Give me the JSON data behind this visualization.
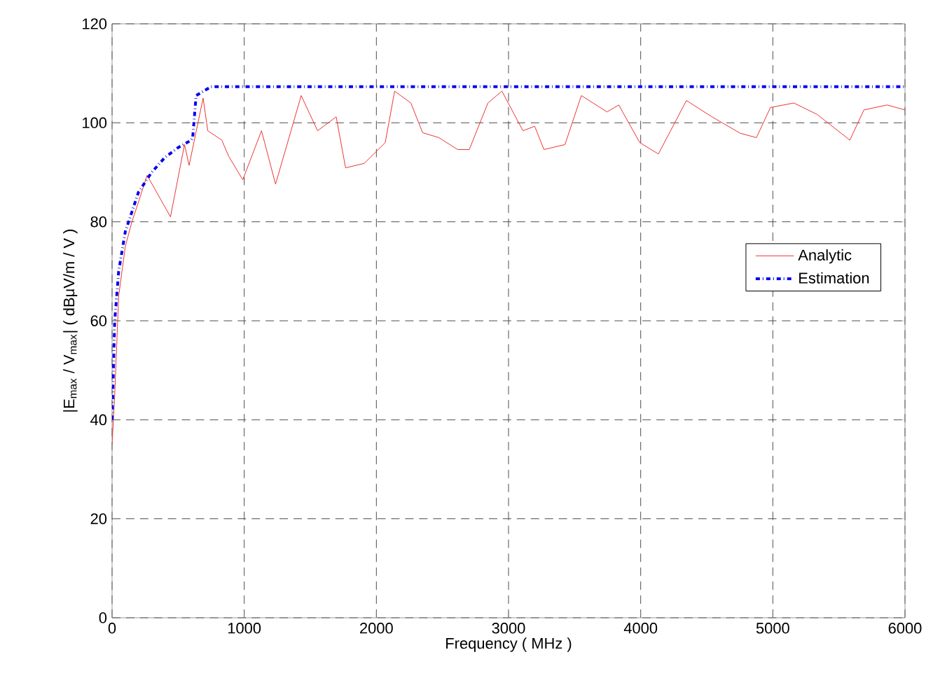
{
  "chart_data": {
    "type": "line",
    "xlabel": "Frequency ( MHz )",
    "ylabel": "|E$_{max}$ / V$_{max}$| ( dBμV/m / V )",
    "xlim": [
      0,
      6000
    ],
    "ylim": [
      0,
      120
    ],
    "xticks": [
      0,
      1000,
      2000,
      3000,
      4000,
      5000,
      6000
    ],
    "yticks": [
      0,
      20,
      40,
      60,
      80,
      100,
      120
    ],
    "grid": true,
    "legend": "right",
    "series": [
      {
        "name": "Analytic",
        "color": "#ee3333",
        "line_style": "solid",
        "x": [
          0,
          20,
          50,
          100,
          150,
          200,
          265,
          442,
          548,
          583,
          689,
          724,
          830,
          883,
          989,
          1131,
          1237,
          1431,
          1555,
          1696,
          1767,
          1908,
          2067,
          2138,
          2261,
          2350,
          2473,
          2615,
          2703,
          2844,
          2950,
          3109,
          3198,
          3268,
          3427,
          3551,
          3745,
          3834,
          3993,
          4134,
          4346,
          4540,
          4752,
          4876,
          4982,
          5159,
          5335,
          5583,
          5689,
          5865,
          6000
        ],
        "values": [
          35,
          45,
          65,
          75,
          80,
          84,
          89.4,
          81,
          95.6,
          91.4,
          105,
          98.4,
          96.5,
          93.2,
          88.5,
          98.4,
          87.6,
          105.5,
          98.4,
          101.2,
          90.9,
          91.8,
          96,
          106.4,
          104,
          98,
          97,
          94.6,
          94.6,
          104,
          106.4,
          98.4,
          99.3,
          94.6,
          95.6,
          105.5,
          102.2,
          103.6,
          96,
          93.7,
          104.5,
          101.2,
          97.9,
          97,
          103.1,
          104,
          101.7,
          96.5,
          102.6,
          103.6,
          102.6
        ]
      },
      {
        "name": "Estimation",
        "color": "#0000ee",
        "line_style": "dashdot",
        "x": [
          0,
          20,
          50,
          100,
          200,
          300,
          400,
          500,
          600,
          610,
          636,
          750,
          6000
        ],
        "values": [
          40,
          60,
          70,
          78,
          86,
          90,
          93,
          95,
          96.5,
          97,
          105.5,
          107.3,
          107.3
        ]
      }
    ]
  }
}
